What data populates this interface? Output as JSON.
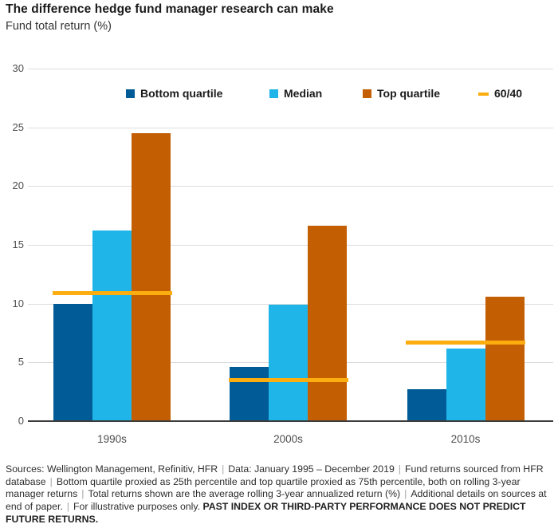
{
  "chart_data": {
    "type": "bar",
    "title": "The difference hedge fund manager research can make",
    "subtitle": "Fund total return (%)",
    "categories": [
      "1990s",
      "2000s",
      "2010s"
    ],
    "series": [
      {
        "name": "Bottom quartile",
        "color": "#005B96",
        "values": [
          10.0,
          4.6,
          2.7
        ]
      },
      {
        "name": "Median",
        "color": "#1FB5E8",
        "values": [
          16.2,
          9.9,
          6.2
        ]
      },
      {
        "name": "Top quartile",
        "color": "#C35F02",
        "values": [
          24.5,
          16.6,
          10.6
        ]
      }
    ],
    "line_series": {
      "name": "60/40",
      "color": "#FCAD0F",
      "values": [
        10.9,
        3.5,
        6.7
      ]
    },
    "ylim": [
      0,
      30
    ],
    "yticks": [
      0,
      5,
      10,
      15,
      20,
      25,
      30
    ],
    "grid": "horizontal",
    "legend_position": "top-inside"
  },
  "footnote": {
    "parts": [
      "Sources: Wellington Management, Refinitiv, HFR",
      "Data: January 1995 – December 2019",
      "Fund returns sourced from HFR database",
      "Bottom quartile proxied as 25th percentile and top quartile proxied as 75th percentile, both on rolling 3-year manager returns",
      "Total returns shown are the average rolling 3-year annualized return (%)",
      "Additional details on sources at end of paper.",
      "For illustrative purposes only."
    ],
    "bold_text": "PAST INDEX OR THIRD-PARTY PERFORMANCE DOES NOT PREDICT FUTURE RETURNS."
  }
}
